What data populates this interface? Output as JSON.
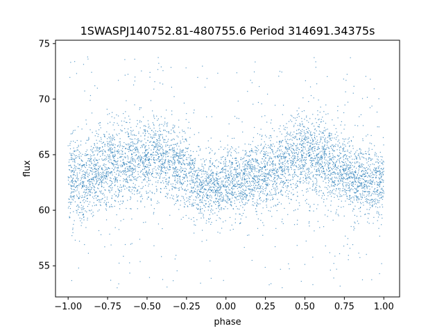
{
  "chart_data": {
    "type": "scatter",
    "title": "1SWASPJ140752.81-480755.6 Period 314691.34375s",
    "xlabel": "phase",
    "ylabel": "flux",
    "xlim": [
      -1.08,
      1.1
    ],
    "ylim": [
      52.2,
      75.3
    ],
    "xticks": [
      -1.0,
      -0.75,
      -0.5,
      -0.25,
      0.0,
      0.25,
      0.5,
      0.75,
      1.0
    ],
    "xtick_labels": [
      "−1.00",
      "−0.75",
      "−0.50",
      "−0.25",
      "0.00",
      "0.25",
      "0.50",
      "0.75",
      "1.00"
    ],
    "yticks": [
      55,
      60,
      65,
      70,
      75
    ],
    "ytick_labels": [
      "55",
      "60",
      "65",
      "70",
      "75"
    ],
    "grid": false,
    "marker_color": "#1f77b4",
    "series": [
      {
        "x_range": [
          -1.0,
          1.0
        ],
        "period": 1.0,
        "band_profile": {
          "phase": [
            -1.0,
            -0.9,
            -0.75,
            -0.6,
            -0.5,
            -0.4,
            -0.25,
            -0.15,
            -0.05,
            0.0,
            0.1,
            0.25,
            0.4,
            0.5,
            0.6,
            0.75,
            0.85,
            0.95,
            1.0
          ],
          "center_flux": [
            62.6,
            63.0,
            63.9,
            64.6,
            64.9,
            64.6,
            63.4,
            62.3,
            62.0,
            62.3,
            62.6,
            63.4,
            64.6,
            64.9,
            64.6,
            63.4,
            62.8,
            62.5,
            62.6
          ],
          "half_width": [
            3.2,
            3.4,
            3.3,
            3.3,
            3.5,
            3.3,
            3.0,
            2.7,
            2.6,
            2.7,
            2.8,
            3.1,
            3.3,
            3.5,
            3.3,
            3.2,
            3.0,
            3.1,
            3.2
          ]
        },
        "outlier_range": [
          53.0,
          74.0
        ]
      }
    ]
  }
}
